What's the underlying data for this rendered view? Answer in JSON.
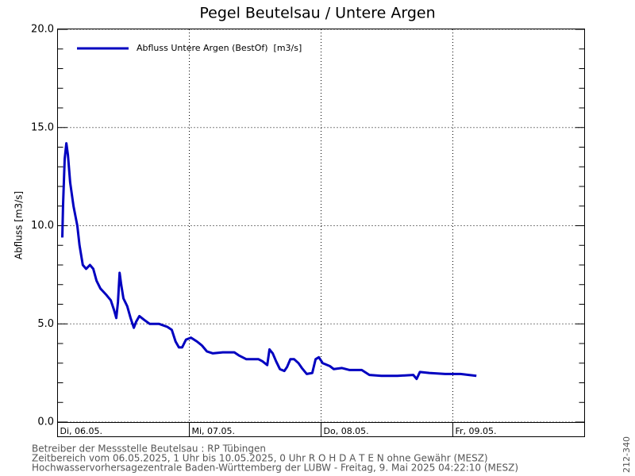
{
  "chart_data": {
    "type": "line",
    "title": "Pegel Beutelsau / Untere Argen",
    "y_label": "Abfluss [m3/s]",
    "x": [
      0.87,
      1.0,
      1.3,
      1.6,
      1.9,
      2.3,
      2.9,
      3.6,
      4.0,
      4.6,
      5.2,
      5.9,
      6.5,
      7.1,
      7.8,
      8.8,
      9.7,
      10.3,
      10.7,
      11.0,
      11.3,
      11.6,
      12.0,
      12.7,
      13.3,
      13.9,
      14.3,
      14.9,
      15.8,
      16.8,
      18.5,
      20.0,
      20.8,
      21.5,
      22.1,
      22.7,
      23.4,
      24.3,
      25.4,
      26.3,
      27.2,
      28.3,
      30.1,
      32.2,
      33.0,
      34.4,
      36.6,
      37.3,
      38.2,
      38.6,
      39.2,
      39.8,
      40.5,
      41.3,
      41.8,
      42.4,
      43.1,
      43.9,
      44.5,
      45.4,
      46.4,
      47.0,
      47.6,
      48.3,
      49.6,
      50.3,
      51.8,
      53.2,
      55.4,
      56.8,
      59.0,
      61.9,
      64.8,
      65.4,
      66.0,
      67.7,
      70.6,
      73.4,
      74.9,
      76.3
    ],
    "series": [
      {
        "name": "Abfluss Untere Argen (BestOf)  [m3/s]",
        "color": "#0000c0",
        "values": [
          9.4,
          11.0,
          13.4,
          14.2,
          13.6,
          12.2,
          11.0,
          10.0,
          9.0,
          8.0,
          7.8,
          8.0,
          7.8,
          7.2,
          6.8,
          6.5,
          6.2,
          5.7,
          5.3,
          6.1,
          7.6,
          7.0,
          6.3,
          5.9,
          5.3,
          4.8,
          5.1,
          5.4,
          5.2,
          5.0,
          5.0,
          4.85,
          4.7,
          4.1,
          3.8,
          3.8,
          4.2,
          4.3,
          4.1,
          3.9,
          3.6,
          3.5,
          3.55,
          3.55,
          3.4,
          3.2,
          3.2,
          3.1,
          2.9,
          3.7,
          3.5,
          3.1,
          2.7,
          2.6,
          2.8,
          3.2,
          3.2,
          3.0,
          2.75,
          2.45,
          2.5,
          3.2,
          3.3,
          3.0,
          2.85,
          2.7,
          2.75,
          2.65,
          2.65,
          2.4,
          2.35,
          2.35,
          2.4,
          2.2,
          2.55,
          2.5,
          2.45,
          2.45,
          2.4,
          2.35
        ]
      }
    ],
    "xlim": [
      0,
      96
    ],
    "xticks": [
      {
        "value": 0,
        "label": "Di, 06.05."
      },
      {
        "value": 24,
        "label": "Mi, 07.05."
      },
      {
        "value": 48,
        "label": "Do, 08.05."
      },
      {
        "value": 72,
        "label": "Fr, 09.05."
      }
    ],
    "ylim": [
      0,
      20
    ],
    "yticks": [
      {
        "value": 0,
        "label": "0.0"
      },
      {
        "value": 5,
        "label": "5.0"
      },
      {
        "value": 10,
        "label": "10.0"
      },
      {
        "value": 15,
        "label": "15.0"
      },
      {
        "value": 20,
        "label": "20.0"
      }
    ],
    "grid": true,
    "legend": "upper left",
    "footer": [
      "Betreiber der Messstelle Beutelsau : RP Tübingen",
      "Zeitbereich vom 06.05.2025, 1 Uhr bis 10.05.2025, 0 Uhr   R O H D A T E N ohne Gewähr (MESZ)",
      "Hochwasservorhersagezentrale Baden-Württemberg der LUBW - Freitag, 9. Mai 2025 04:22:10 (MESZ)"
    ],
    "side_note": "212-340"
  }
}
